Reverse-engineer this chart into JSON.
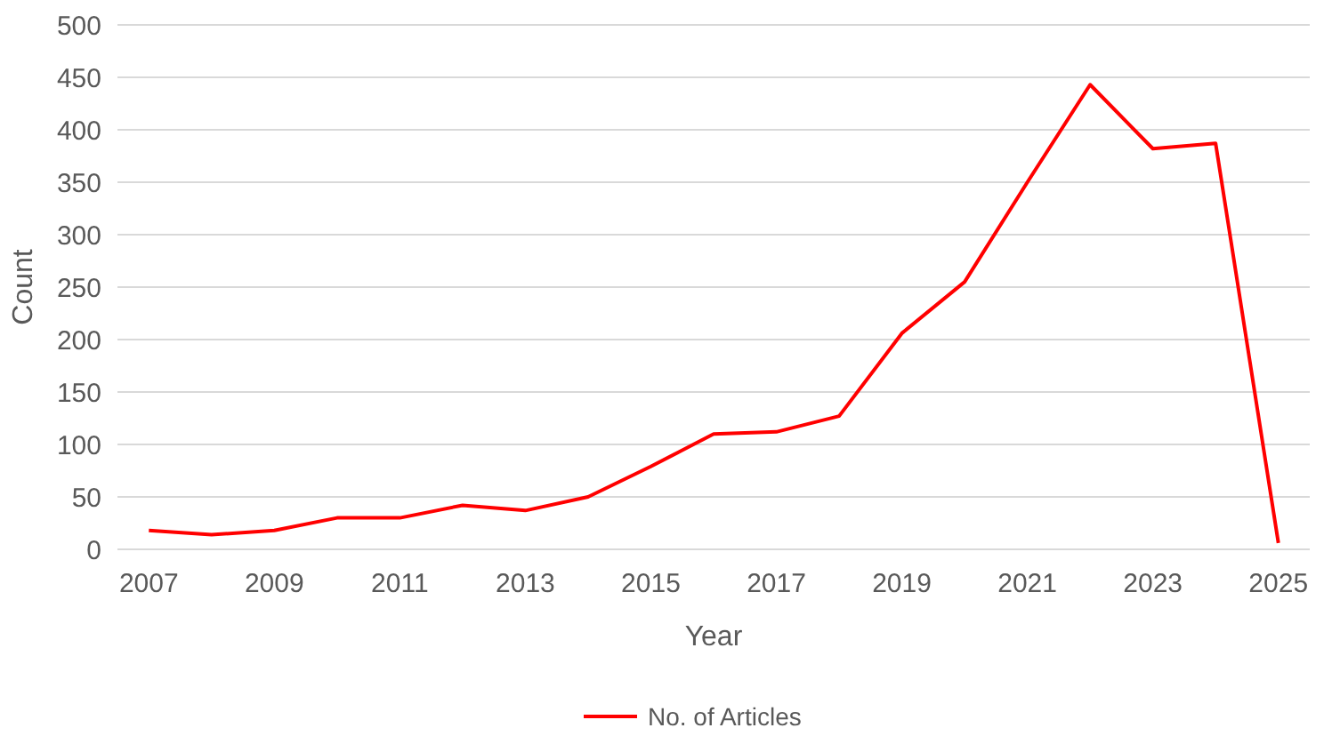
{
  "chart_data": {
    "type": "line",
    "xlabel": "Year",
    "ylabel": "Count",
    "x": [
      2007,
      2008,
      2009,
      2010,
      2011,
      2012,
      2013,
      2014,
      2015,
      2016,
      2017,
      2018,
      2019,
      2020,
      2021,
      2022,
      2023,
      2024,
      2025
    ],
    "series": [
      {
        "name": "No. of Articles",
        "color": "#ff0000",
        "values": [
          18,
          14,
          18,
          30,
          30,
          42,
          37,
          50,
          79,
          110,
          112,
          127,
          206,
          255,
          350,
          443,
          382,
          387,
          6
        ]
      }
    ],
    "xlim": [
      2006.5,
      2025.5
    ],
    "xticks": [
      2007,
      2009,
      2011,
      2013,
      2015,
      2017,
      2019,
      2021,
      2023,
      2025
    ],
    "ylim": [
      0,
      500
    ],
    "yticks": [
      0,
      50,
      100,
      150,
      200,
      250,
      300,
      350,
      400,
      450,
      500
    ],
    "grid": "y",
    "legend": "bottom",
    "marker": "none",
    "line_style": "solid"
  }
}
